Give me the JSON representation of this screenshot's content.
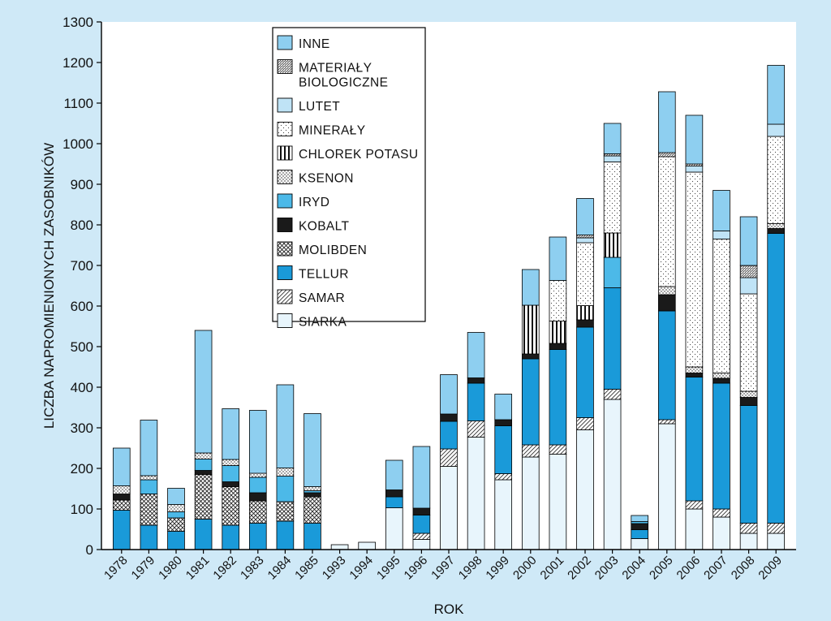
{
  "chart_data": {
    "type": "bar",
    "stacked": true,
    "xlabel": "ROK",
    "ylabel": "LICZBA NAPROMIENIONYCH ZASOBNIKÓW",
    "ylim": [
      0,
      1300
    ],
    "yticks": [
      0,
      100,
      200,
      300,
      400,
      500,
      600,
      700,
      800,
      900,
      1000,
      1100,
      1200,
      1300
    ],
    "grid": false,
    "legend_position": "top-center",
    "categories": [
      "1978",
      "1979",
      "1980",
      "1981",
      "1982",
      "1983",
      "1984",
      "1985",
      "1993",
      "1994",
      "1995",
      "1996",
      "1997",
      "1998",
      "1999",
      "2000",
      "2001",
      "2002",
      "2003",
      "2004",
      "2005",
      "2006",
      "2007",
      "2008",
      "2009"
    ],
    "series": [
      {
        "name": "SIARKA",
        "pattern": "solid",
        "color": "#e8f5fc",
        "values": [
          0,
          0,
          0,
          0,
          0,
          0,
          0,
          0,
          12,
          18,
          103,
          25,
          205,
          277,
          172,
          228,
          235,
          295,
          370,
          27,
          310,
          100,
          80,
          40,
          40
        ]
      },
      {
        "name": "SAMAR",
        "pattern": "diag",
        "color": "#ffffff",
        "values": [
          0,
          0,
          0,
          0,
          0,
          0,
          0,
          0,
          0,
          0,
          0,
          15,
          43,
          40,
          15,
          30,
          23,
          30,
          25,
          0,
          10,
          20,
          20,
          25,
          25
        ]
      },
      {
        "name": "TELLUR",
        "pattern": "solid",
        "color": "#1a9ad9",
        "values": [
          97,
          60,
          45,
          75,
          60,
          65,
          70,
          65,
          0,
          0,
          27,
          45,
          68,
          93,
          118,
          212,
          235,
          223,
          250,
          22,
          268,
          305,
          310,
          290,
          714
        ]
      },
      {
        "name": "MOLIBDEN",
        "pattern": "cross",
        "color": "#ffffff",
        "values": [
          25,
          77,
          33,
          110,
          95,
          55,
          48,
          65,
          0,
          0,
          0,
          0,
          0,
          0,
          0,
          0,
          0,
          0,
          0,
          0,
          0,
          0,
          0,
          0,
          0
        ]
      },
      {
        "name": "KOBALT",
        "pattern": "solid",
        "color": "#1a1a1a",
        "values": [
          15,
          0,
          0,
          10,
          12,
          20,
          0,
          10,
          0,
          0,
          17,
          17,
          18,
          13,
          15,
          12,
          15,
          18,
          0,
          15,
          40,
          10,
          12,
          20,
          12
        ]
      },
      {
        "name": "IRYD",
        "pattern": "solid",
        "color": "#4cb9e8",
        "values": [
          0,
          35,
          15,
          28,
          40,
          38,
          63,
          5,
          0,
          0,
          0,
          0,
          0,
          0,
          0,
          0,
          0,
          0,
          75,
          5,
          0,
          0,
          0,
          0,
          0
        ]
      },
      {
        "name": "KSENON",
        "pattern": "dots",
        "color": "#ffffff",
        "values": [
          20,
          10,
          18,
          15,
          15,
          10,
          20,
          10,
          0,
          0,
          0,
          0,
          0,
          0,
          0,
          0,
          0,
          0,
          0,
          0,
          20,
          15,
          13,
          15,
          12
        ]
      },
      {
        "name": "CHLOREK POTASU",
        "pattern": "vstripes",
        "color": "#ffffff",
        "values": [
          0,
          0,
          0,
          0,
          0,
          0,
          0,
          0,
          0,
          0,
          0,
          0,
          0,
          0,
          0,
          120,
          55,
          35,
          60,
          0,
          0,
          0,
          0,
          0,
          0
        ]
      },
      {
        "name": "MINERAŁY",
        "pattern": "sparse-dots",
        "color": "#ffffff",
        "values": [
          0,
          0,
          0,
          0,
          0,
          0,
          0,
          0,
          0,
          0,
          0,
          0,
          0,
          0,
          0,
          0,
          100,
          155,
          175,
          0,
          320,
          480,
          330,
          240,
          215
        ]
      },
      {
        "name": "LUTET",
        "pattern": "solid",
        "color": "#bfe3f6",
        "values": [
          0,
          0,
          0,
          0,
          0,
          0,
          0,
          0,
          0,
          0,
          0,
          0,
          0,
          0,
          0,
          0,
          0,
          12,
          15,
          0,
          0,
          15,
          20,
          40,
          30
        ]
      },
      {
        "name": "MATERIAŁY BIOLOGICZNE",
        "pattern": "dense",
        "color": "#ffffff",
        "values": [
          0,
          0,
          0,
          0,
          0,
          0,
          0,
          0,
          0,
          0,
          0,
          0,
          0,
          0,
          0,
          0,
          0,
          7,
          5,
          0,
          10,
          5,
          0,
          30,
          0
        ]
      },
      {
        "name": "INNE",
        "pattern": "solid",
        "color": "#8ecff0",
        "values": [
          93,
          137,
          40,
          302,
          125,
          155,
          205,
          180,
          0,
          0,
          73,
          152,
          97,
          112,
          63,
          88,
          107,
          90,
          75,
          15,
          150,
          120,
          100,
          120,
          145
        ]
      }
    ]
  }
}
